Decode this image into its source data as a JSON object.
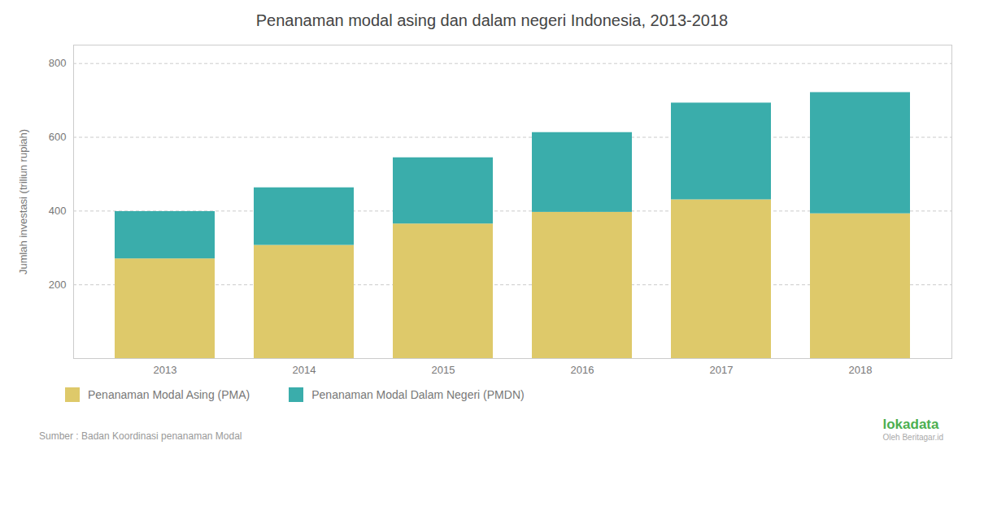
{
  "chart_data": {
    "type": "bar",
    "title": "Penanaman modal asing dan dalam negeri Indonesia, 2013-2018",
    "categories": [
      "2013",
      "2014",
      "2015",
      "2016",
      "2017",
      "2018"
    ],
    "series": [
      {
        "name": "Penanaman Modal Asing (PMA)",
        "color": "#DEC96A",
        "values": [
          270.4,
          307.0,
          365.0,
          396.6,
          430.5,
          392.7
        ]
      },
      {
        "name": "Penanaman Modal Dalam Negeri (PMDN)",
        "color": "#3AADAB",
        "values": [
          128.2,
          156.1,
          179.5,
          216.2,
          262.3,
          328.6
        ]
      }
    ],
    "stacked": true,
    "ylabel": "Jumlah investasi (triliun rupiah)",
    "ylim": [
      0,
      850
    ],
    "yticks": [
      200,
      400,
      600,
      800
    ],
    "grid": true,
    "legend": "bottom",
    "annotations": [
      "Sumber : Badan Koordinasi penanaman Modal",
      "lokadata",
      "Oleh Beritagar.id"
    ]
  }
}
